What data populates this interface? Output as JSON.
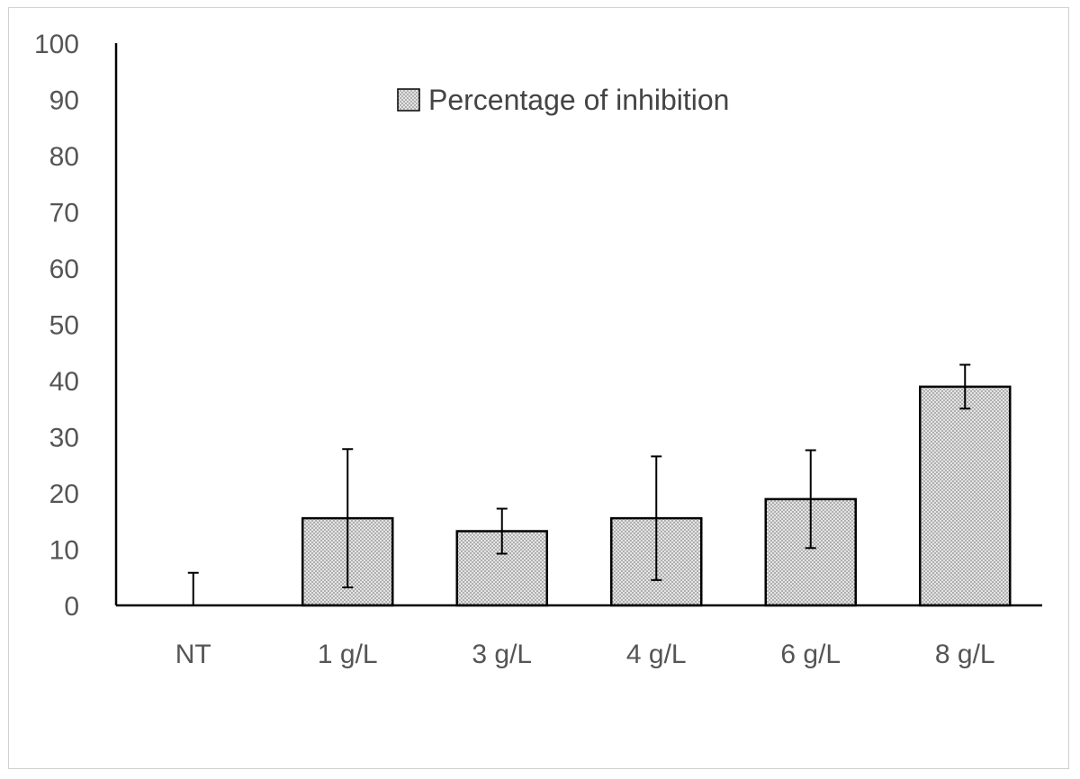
{
  "chart_data": {
    "type": "bar",
    "categories": [
      "NT",
      "1 g/L",
      "3 g/L",
      "4 g/L",
      "6 g/L",
      "8 g/L"
    ],
    "series": [
      {
        "name": "Percentage of inhibition",
        "values": [
          0,
          15.5,
          13.2,
          15.5,
          18.9,
          38.9
        ],
        "errors": [
          5.8,
          12.3,
          4.0,
          11.0,
          8.7,
          3.9
        ]
      }
    ],
    "yticks": [
      0,
      10,
      20,
      30,
      40,
      50,
      60,
      70,
      80,
      90,
      100
    ],
    "ylim": [
      0,
      100
    ],
    "grid": false,
    "legend_position": "top-center",
    "bar_fill": "#dcdcdc",
    "bar_stroke": "#000000",
    "axis_color": "#000000"
  }
}
